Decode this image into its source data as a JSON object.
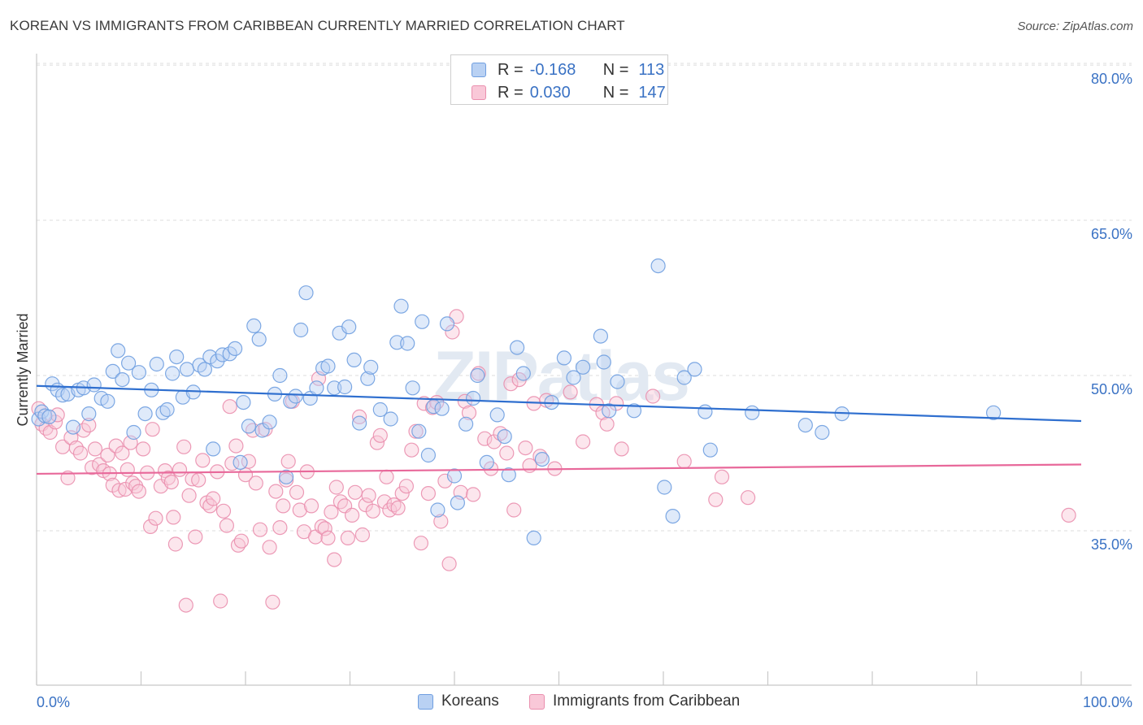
{
  "title": "KOREAN VS IMMIGRANTS FROM CARIBBEAN CURRENTLY MARRIED CORRELATION CHART",
  "source": "Source: ZipAtlas.com",
  "watermark": "ZIPatlas",
  "legend_top": {
    "rows": [
      {
        "r_label": "R =",
        "r_value": "-0.168",
        "n_label": "N =",
        "n_value": "113"
      },
      {
        "r_label": "R =",
        "r_value": "0.030",
        "n_label": "N =",
        "n_value": "147"
      }
    ]
  },
  "legend_bottom": [
    "Koreans",
    "Immigrants from Caribbean"
  ],
  "colors": {
    "blue": "#6f9ee0",
    "blue_fill": "#b9d1f3",
    "blue_line": "#2f6fcf",
    "pink": "#ea8fae",
    "pink_fill": "#f9c8d8",
    "pink_line": "#e8689a",
    "tick_text": "#3a72c4"
  },
  "chart_data": {
    "type": "scatter",
    "title": "KOREAN VS IMMIGRANTS FROM CARIBBEAN CURRENTLY MARRIED CORRELATION CHART",
    "xlabel": "",
    "ylabel": "Currently Married",
    "xlim": [
      0,
      100
    ],
    "ylim": [
      20,
      85
    ],
    "x_tick_labels": [
      "0.0%",
      "100.0%"
    ],
    "y_ticks": [
      35,
      50,
      65,
      80
    ],
    "y_tick_labels": [
      "35.0%",
      "50.0%",
      "65.0%",
      "80.0%"
    ],
    "grid": "horizontal dashed",
    "legend": "top-center",
    "series": [
      {
        "name": "Koreans",
        "r": -0.168,
        "n": 113,
        "trend": {
          "x": [
            0,
            100
          ],
          "y": [
            49.0,
            45.6
          ]
        },
        "points": [
          [
            0.2,
            45.8
          ],
          [
            0.5,
            46.5
          ],
          [
            0.8,
            46.1
          ],
          [
            1.2,
            46.0
          ],
          [
            1.5,
            49.2
          ],
          [
            2.0,
            48.6
          ],
          [
            2.5,
            48.1
          ],
          [
            3.0,
            48.2
          ],
          [
            3.5,
            45.0
          ],
          [
            4.0,
            48.6
          ],
          [
            4.5,
            48.8
          ],
          [
            5.0,
            46.3
          ],
          [
            5.5,
            49.1
          ],
          [
            6.2,
            47.8
          ],
          [
            6.8,
            47.5
          ],
          [
            7.3,
            50.4
          ],
          [
            7.8,
            52.4
          ],
          [
            8.2,
            49.6
          ],
          [
            8.8,
            51.2
          ],
          [
            9.3,
            44.5
          ],
          [
            9.8,
            50.3
          ],
          [
            10.4,
            46.3
          ],
          [
            11.0,
            48.6
          ],
          [
            11.5,
            51.1
          ],
          [
            12.1,
            46.4
          ],
          [
            12.5,
            46.7
          ],
          [
            13.0,
            50.2
          ],
          [
            13.4,
            51.8
          ],
          [
            14.0,
            47.9
          ],
          [
            14.4,
            50.6
          ],
          [
            15.0,
            48.4
          ],
          [
            15.6,
            51.0
          ],
          [
            16.1,
            50.6
          ],
          [
            16.6,
            51.8
          ],
          [
            16.9,
            42.9
          ],
          [
            17.3,
            51.4
          ],
          [
            17.8,
            52.0
          ],
          [
            18.5,
            52.1
          ],
          [
            19.0,
            52.6
          ],
          [
            19.5,
            41.6
          ],
          [
            19.8,
            47.4
          ],
          [
            20.3,
            45.1
          ],
          [
            20.8,
            54.8
          ],
          [
            21.3,
            53.5
          ],
          [
            21.6,
            44.7
          ],
          [
            22.3,
            45.5
          ],
          [
            22.8,
            48.2
          ],
          [
            23.3,
            50.0
          ],
          [
            23.9,
            40.2
          ],
          [
            24.3,
            47.5
          ],
          [
            24.8,
            48.0
          ],
          [
            25.3,
            54.4
          ],
          [
            25.8,
            58.0
          ],
          [
            26.2,
            47.8
          ],
          [
            26.8,
            48.8
          ],
          [
            27.4,
            50.7
          ],
          [
            27.9,
            50.9
          ],
          [
            28.5,
            48.8
          ],
          [
            29.0,
            54.1
          ],
          [
            29.5,
            48.9
          ],
          [
            29.9,
            54.7
          ],
          [
            30.4,
            51.5
          ],
          [
            30.9,
            45.4
          ],
          [
            31.7,
            49.7
          ],
          [
            32.0,
            50.8
          ],
          [
            32.9,
            46.7
          ],
          [
            33.9,
            45.8
          ],
          [
            34.5,
            53.2
          ],
          [
            34.9,
            56.7
          ],
          [
            35.5,
            53.1
          ],
          [
            36.0,
            48.8
          ],
          [
            36.6,
            44.6
          ],
          [
            36.9,
            55.2
          ],
          [
            37.5,
            42.3
          ],
          [
            38.0,
            47.0
          ],
          [
            38.4,
            37.0
          ],
          [
            38.8,
            46.8
          ],
          [
            39.3,
            55.0
          ],
          [
            40.0,
            40.3
          ],
          [
            40.3,
            37.7
          ],
          [
            41.1,
            45.3
          ],
          [
            41.8,
            47.8
          ],
          [
            42.2,
            50.0
          ],
          [
            43.1,
            41.6
          ],
          [
            44.1,
            46.2
          ],
          [
            44.8,
            44.1
          ],
          [
            45.2,
            40.4
          ],
          [
            46.0,
            52.7
          ],
          [
            46.6,
            50.2
          ],
          [
            47.6,
            34.3
          ],
          [
            48.4,
            41.9
          ],
          [
            49.3,
            47.4
          ],
          [
            50.5,
            51.7
          ],
          [
            51.4,
            49.8
          ],
          [
            52.3,
            50.8
          ],
          [
            54.0,
            53.8
          ],
          [
            54.3,
            51.3
          ],
          [
            54.8,
            46.6
          ],
          [
            55.6,
            49.4
          ],
          [
            57.2,
            46.6
          ],
          [
            59.5,
            60.6
          ],
          [
            60.1,
            39.2
          ],
          [
            60.9,
            36.4
          ],
          [
            62.0,
            49.8
          ],
          [
            63.0,
            50.6
          ],
          [
            64.0,
            46.5
          ],
          [
            64.5,
            42.8
          ],
          [
            68.5,
            46.4
          ],
          [
            73.6,
            45.2
          ],
          [
            75.2,
            44.5
          ],
          [
            77.1,
            46.3
          ],
          [
            91.6,
            46.4
          ]
        ]
      },
      {
        "name": "Immigrants from Caribbean",
        "r": 0.03,
        "n": 147,
        "trend": {
          "x": [
            0,
            100
          ],
          "y": [
            40.5,
            41.4
          ]
        },
        "points": [
          [
            0.2,
            46.8
          ],
          [
            0.5,
            45.3
          ],
          [
            0.9,
            44.9
          ],
          [
            1.3,
            44.5
          ],
          [
            1.8,
            45.5
          ],
          [
            2.0,
            46.2
          ],
          [
            2.5,
            43.1
          ],
          [
            3.0,
            40.1
          ],
          [
            3.3,
            44.0
          ],
          [
            3.8,
            43.0
          ],
          [
            4.2,
            42.5
          ],
          [
            4.5,
            44.7
          ],
          [
            5.0,
            45.2
          ],
          [
            5.3,
            41.1
          ],
          [
            5.6,
            42.9
          ],
          [
            6.0,
            41.4
          ],
          [
            6.4,
            40.8
          ],
          [
            6.8,
            42.3
          ],
          [
            7.0,
            40.5
          ],
          [
            7.3,
            39.4
          ],
          [
            7.6,
            43.2
          ],
          [
            7.9,
            38.9
          ],
          [
            8.2,
            42.5
          ],
          [
            8.5,
            39.0
          ],
          [
            8.7,
            40.9
          ],
          [
            9.0,
            43.5
          ],
          [
            9.2,
            39.6
          ],
          [
            9.5,
            39.3
          ],
          [
            9.8,
            38.8
          ],
          [
            10.2,
            42.9
          ],
          [
            10.6,
            40.6
          ],
          [
            10.9,
            35.4
          ],
          [
            11.1,
            44.8
          ],
          [
            11.4,
            36.2
          ],
          [
            11.9,
            39.3
          ],
          [
            12.3,
            40.8
          ],
          [
            12.6,
            40.1
          ],
          [
            12.9,
            39.7
          ],
          [
            13.1,
            36.3
          ],
          [
            13.3,
            33.7
          ],
          [
            13.7,
            40.9
          ],
          [
            14.1,
            43.1
          ],
          [
            14.3,
            27.8
          ],
          [
            14.6,
            38.4
          ],
          [
            14.9,
            40.0
          ],
          [
            15.2,
            34.4
          ],
          [
            15.5,
            39.9
          ],
          [
            15.9,
            41.8
          ],
          [
            16.3,
            37.7
          ],
          [
            16.6,
            37.4
          ],
          [
            16.9,
            38.1
          ],
          [
            17.3,
            40.7
          ],
          [
            17.6,
            28.2
          ],
          [
            17.9,
            36.9
          ],
          [
            18.2,
            35.5
          ],
          [
            18.5,
            47.0
          ],
          [
            18.7,
            41.5
          ],
          [
            19.1,
            43.2
          ],
          [
            19.3,
            33.6
          ],
          [
            19.6,
            34.0
          ],
          [
            20.0,
            40.4
          ],
          [
            20.3,
            41.7
          ],
          [
            20.7,
            44.7
          ],
          [
            21.0,
            39.6
          ],
          [
            21.4,
            35.1
          ],
          [
            21.9,
            44.8
          ],
          [
            22.3,
            33.4
          ],
          [
            22.6,
            28.1
          ],
          [
            22.9,
            38.8
          ],
          [
            23.3,
            35.3
          ],
          [
            23.6,
            37.4
          ],
          [
            23.9,
            39.9
          ],
          [
            24.1,
            41.7
          ],
          [
            24.5,
            47.5
          ],
          [
            24.9,
            38.7
          ],
          [
            25.2,
            37.0
          ],
          [
            25.6,
            34.9
          ],
          [
            25.9,
            40.7
          ],
          [
            26.3,
            37.4
          ],
          [
            26.7,
            34.4
          ],
          [
            27.0,
            49.7
          ],
          [
            27.3,
            35.4
          ],
          [
            27.6,
            35.2
          ],
          [
            27.9,
            34.3
          ],
          [
            28.2,
            36.8
          ],
          [
            28.5,
            32.2
          ],
          [
            28.7,
            39.2
          ],
          [
            29.1,
            37.8
          ],
          [
            29.5,
            37.4
          ],
          [
            29.8,
            34.3
          ],
          [
            30.2,
            36.5
          ],
          [
            30.5,
            38.7
          ],
          [
            30.9,
            46.0
          ],
          [
            31.2,
            34.6
          ],
          [
            31.5,
            37.5
          ],
          [
            31.8,
            38.4
          ],
          [
            32.2,
            36.9
          ],
          [
            32.6,
            43.5
          ],
          [
            32.9,
            44.2
          ],
          [
            33.3,
            37.8
          ],
          [
            33.5,
            40.2
          ],
          [
            33.8,
            37.0
          ],
          [
            34.2,
            37.5
          ],
          [
            34.6,
            37.2
          ],
          [
            35.0,
            38.6
          ],
          [
            35.4,
            39.3
          ],
          [
            35.9,
            42.8
          ],
          [
            36.3,
            44.6
          ],
          [
            36.8,
            33.8
          ],
          [
            37.1,
            47.3
          ],
          [
            37.5,
            38.6
          ],
          [
            37.9,
            46.9
          ],
          [
            38.3,
            47.4
          ],
          [
            38.7,
            35.9
          ],
          [
            39.1,
            39.8
          ],
          [
            39.5,
            31.8
          ],
          [
            39.8,
            54.2
          ],
          [
            40.2,
            55.7
          ],
          [
            40.6,
            38.7
          ],
          [
            41.0,
            47.5
          ],
          [
            41.4,
            46.4
          ],
          [
            41.8,
            38.5
          ],
          [
            42.3,
            50.2
          ],
          [
            42.9,
            43.9
          ],
          [
            43.5,
            41.0
          ],
          [
            43.8,
            43.6
          ],
          [
            44.4,
            44.4
          ],
          [
            45.0,
            42.5
          ],
          [
            45.4,
            49.2
          ],
          [
            45.7,
            37.0
          ],
          [
            46.2,
            49.6
          ],
          [
            46.8,
            43.0
          ],
          [
            47.2,
            41.3
          ],
          [
            47.6,
            47.3
          ],
          [
            48.2,
            42.2
          ],
          [
            48.8,
            47.6
          ],
          [
            49.6,
            41.0
          ],
          [
            51.1,
            48.4
          ],
          [
            52.3,
            43.6
          ],
          [
            53.6,
            47.2
          ],
          [
            54.2,
            46.4
          ],
          [
            54.6,
            45.3
          ],
          [
            55.5,
            47.3
          ],
          [
            56.0,
            42.9
          ],
          [
            59.0,
            48.0
          ],
          [
            62.0,
            41.7
          ],
          [
            65.0,
            38.0
          ],
          [
            65.6,
            40.2
          ],
          [
            68.1,
            38.2
          ],
          [
            98.8,
            36.5
          ]
        ]
      }
    ]
  }
}
